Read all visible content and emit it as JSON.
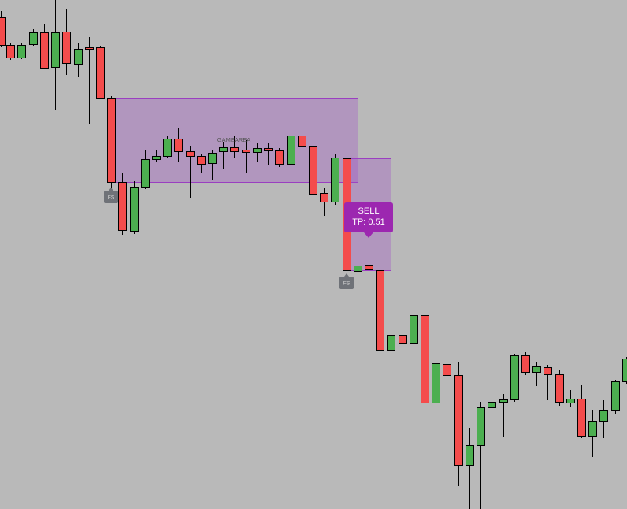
{
  "zone_label": "GAMEAREA",
  "signal": {
    "side": "SELL",
    "target": "TP: 0.51"
  },
  "badges": [
    "FS",
    "FS"
  ]
}
